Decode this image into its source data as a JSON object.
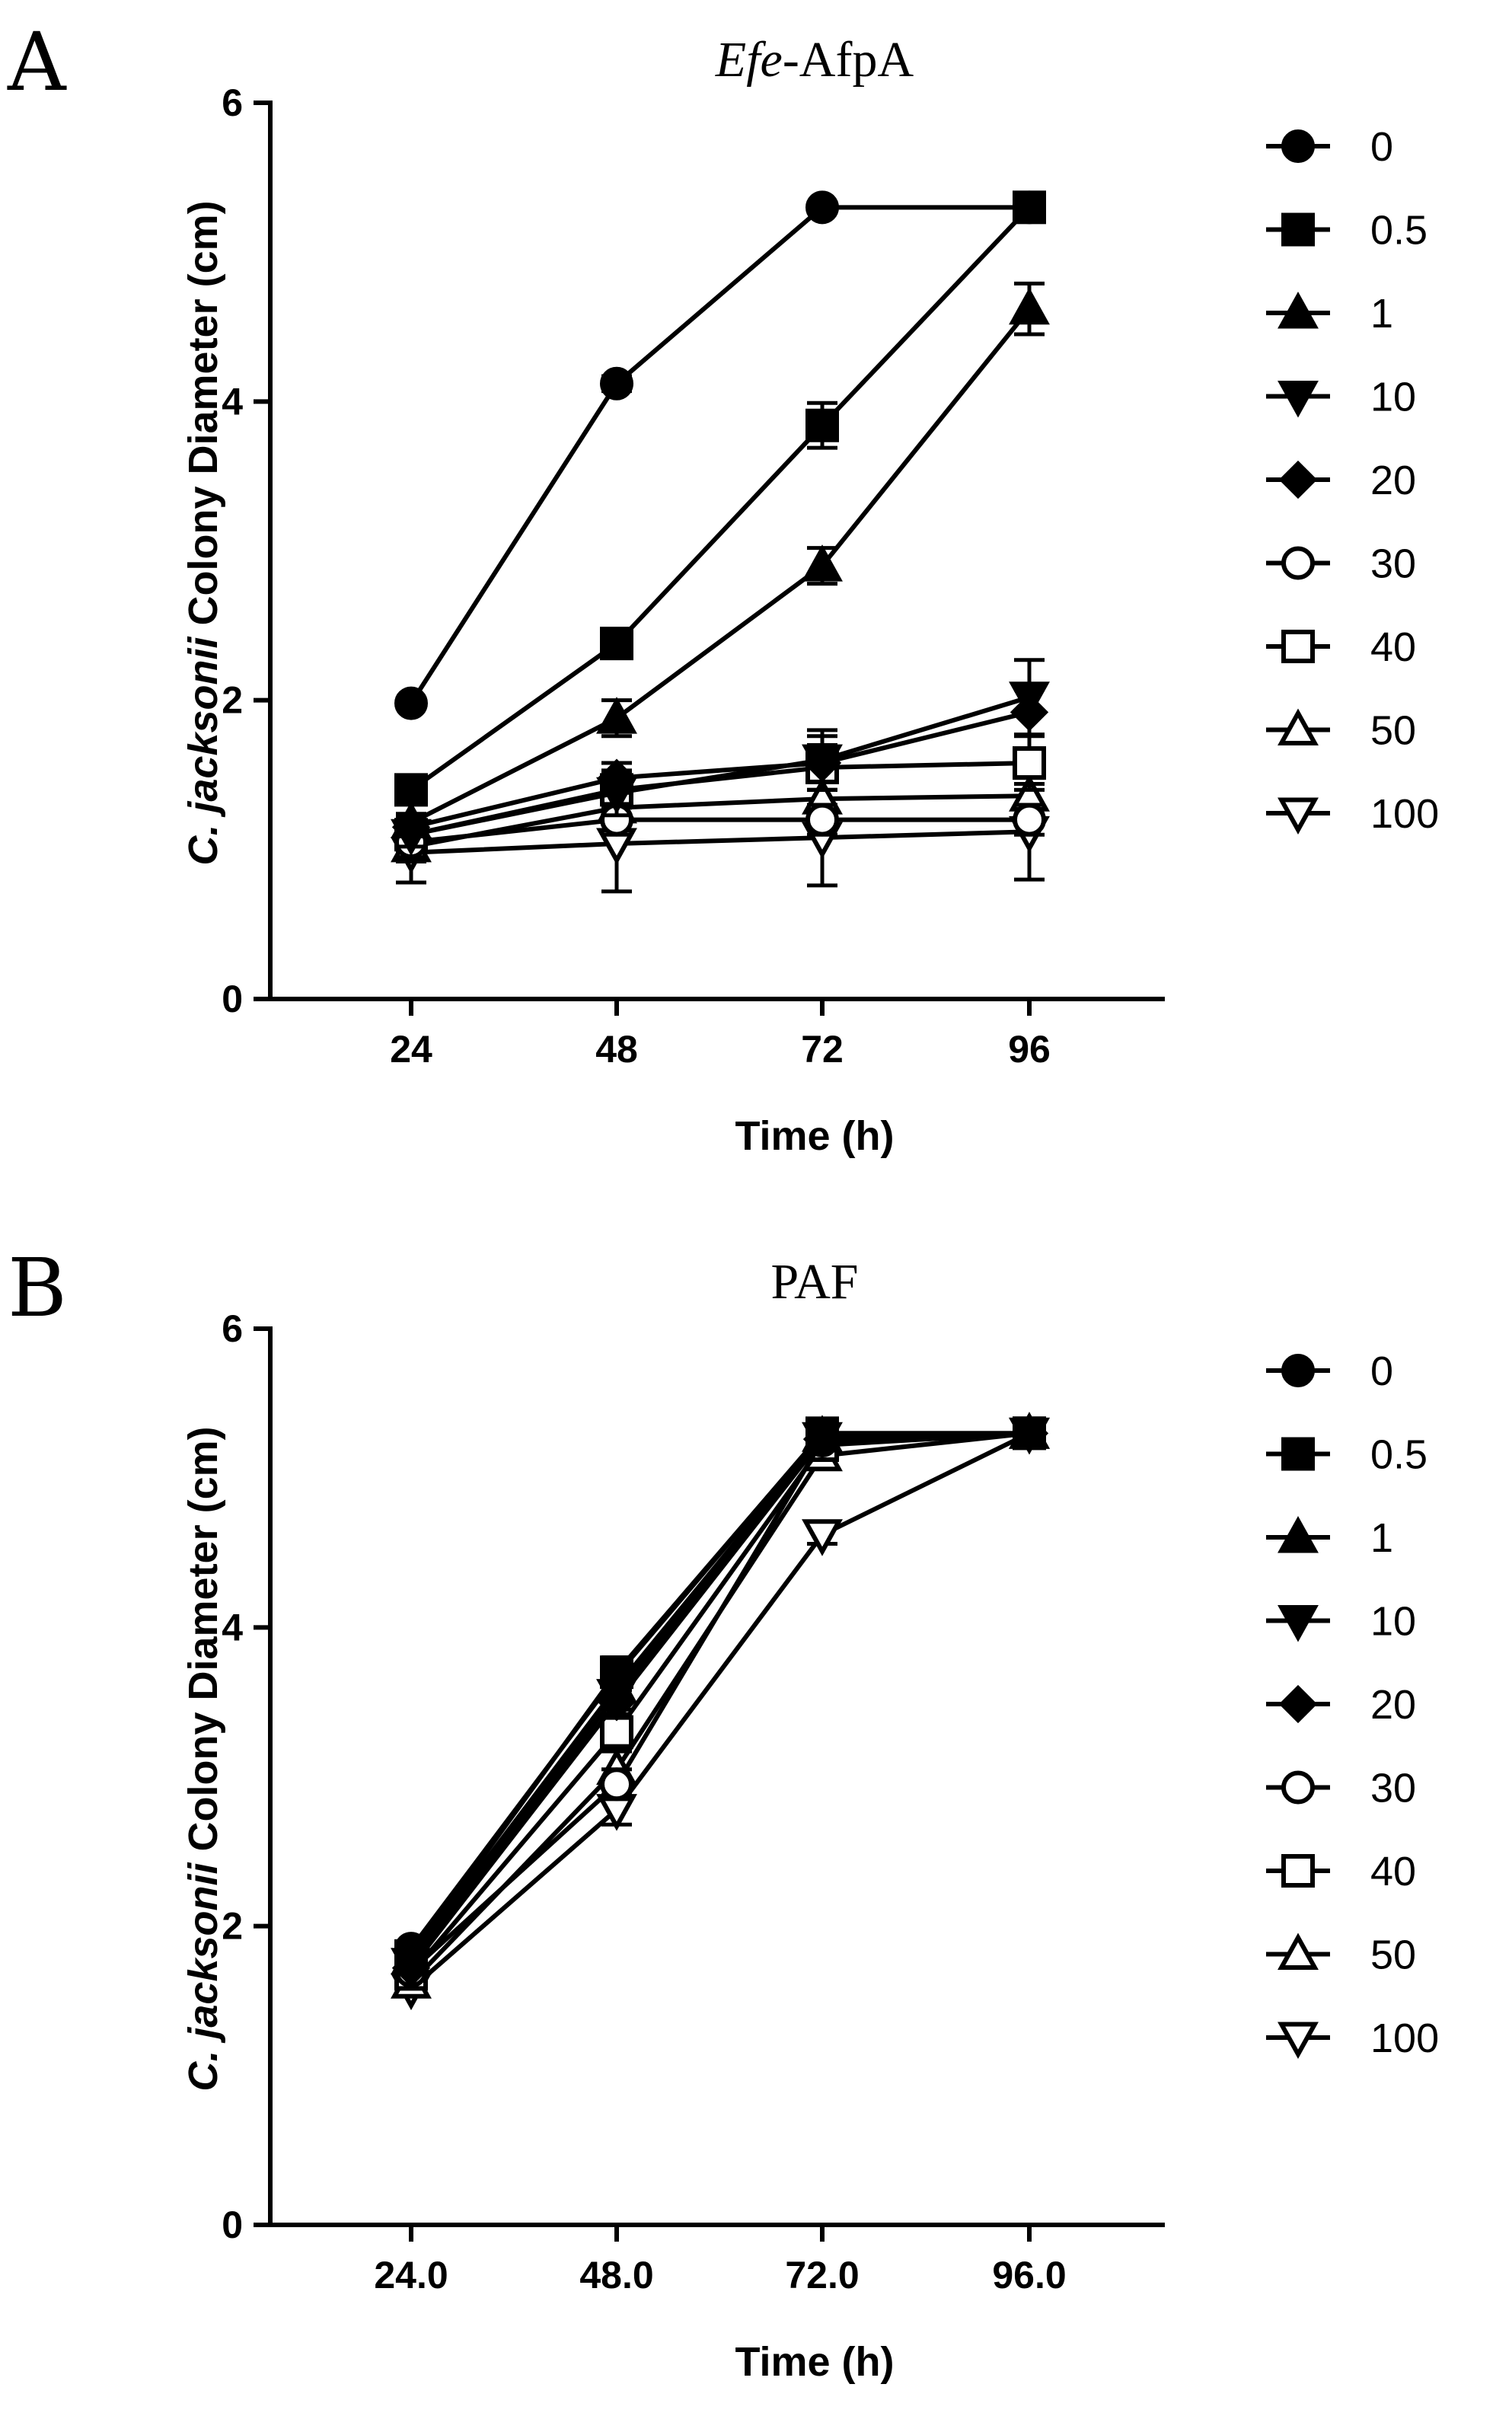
{
  "chart_data": [
    {
      "type": "line",
      "panel": "A",
      "title_italic": "Efe",
      "title_rest": "-AfpA",
      "xlabel": "Time (h)",
      "ylabel_italic": "C. jacksonii",
      "ylabel_rest": " Colony Diameter (cm)",
      "x": [
        24,
        48,
        72,
        96
      ],
      "x_tick_labels": [
        "24",
        "48",
        "72",
        "96"
      ],
      "y_ticks": [
        0,
        2,
        4,
        6
      ],
      "y_tick_labels": [
        "0",
        "2",
        "4",
        "6"
      ],
      "ylim": [
        0,
        6
      ],
      "legend_position": "right",
      "series": [
        {
          "name": "0",
          "marker": "circle",
          "values": [
            1.98,
            4.12,
            5.3,
            5.3
          ],
          "errors": [
            0.03,
            0.05,
            0.03,
            0.03
          ]
        },
        {
          "name": "0.5",
          "marker": "square",
          "values": [
            1.4,
            2.38,
            3.84,
            5.3
          ],
          "errors": [
            0.06,
            0.08,
            0.15,
            0.05
          ]
        },
        {
          "name": "1",
          "marker": "triangle-up",
          "values": [
            1.18,
            1.88,
            2.9,
            4.62
          ],
          "errors": [
            0.06,
            0.12,
            0.12,
            0.17
          ]
        },
        {
          "name": "10",
          "marker": "triangle-down",
          "values": [
            1.1,
            1.38,
            1.6,
            2.02
          ],
          "errors": [
            0.08,
            0.15,
            0.2,
            0.25
          ]
        },
        {
          "name": "20",
          "marker": "diamond",
          "values": [
            1.15,
            1.48,
            1.58,
            1.92
          ],
          "errors": [
            0.06,
            0.1,
            0.18,
            0.15
          ]
        },
        {
          "name": "30",
          "marker": "circle-open",
          "values": [
            1.05,
            1.2,
            1.2,
            1.2
          ],
          "errors": [
            0.1,
            0.1,
            0.1,
            0.1
          ]
        },
        {
          "name": "40",
          "marker": "square-open",
          "values": [
            1.1,
            1.4,
            1.55,
            1.58
          ],
          "errors": [
            0.12,
            0.12,
            0.15,
            0.18
          ]
        },
        {
          "name": "50",
          "marker": "triangle-up-open",
          "values": [
            1.02,
            1.28,
            1.34,
            1.36
          ],
          "errors": [
            0.1,
            0.1,
            0.12,
            0.12
          ]
        },
        {
          "name": "100",
          "marker": "triangle-down-open",
          "values": [
            0.98,
            1.04,
            1.08,
            1.12
          ],
          "errors": [
            0.2,
            0.32,
            0.32,
            0.32
          ]
        }
      ]
    },
    {
      "type": "line",
      "panel": "B",
      "title_italic": "",
      "title_rest": "PAF",
      "xlabel": "Time (h)",
      "ylabel_italic": "C. jacksonii",
      "ylabel_rest": " Colony Diameter (cm)",
      "x": [
        24,
        48,
        72,
        96
      ],
      "x_tick_labels": [
        "24.0",
        "48.0",
        "72.0",
        "96.0"
      ],
      "y_ticks": [
        0,
        2,
        4,
        6
      ],
      "y_tick_labels": [
        "0",
        "2",
        "4",
        "6"
      ],
      "ylim": [
        0,
        6
      ],
      "legend_position": "right",
      "series": [
        {
          "name": "0",
          "marker": "circle",
          "values": [
            1.85,
            3.68,
            5.3,
            5.3
          ],
          "errors": [
            0.04,
            0.1,
            0.04,
            0.03
          ]
        },
        {
          "name": "0.5",
          "marker": "square",
          "values": [
            1.8,
            3.7,
            5.3,
            5.3
          ],
          "errors": [
            0.04,
            0.1,
            0.04,
            0.03
          ]
        },
        {
          "name": "1",
          "marker": "triangle-up",
          "values": [
            1.78,
            3.6,
            5.28,
            5.3
          ],
          "errors": [
            0.04,
            0.1,
            0.04,
            0.03
          ]
        },
        {
          "name": "10",
          "marker": "triangle-down",
          "values": [
            1.75,
            3.55,
            5.27,
            5.3
          ],
          "errors": [
            0.04,
            0.1,
            0.04,
            0.03
          ]
        },
        {
          "name": "20",
          "marker": "diamond",
          "values": [
            1.72,
            3.5,
            5.26,
            5.3
          ],
          "errors": [
            0.04,
            0.1,
            0.04,
            0.03
          ]
        },
        {
          "name": "30",
          "marker": "circle-open",
          "values": [
            1.7,
            2.95,
            5.25,
            5.3
          ],
          "errors": [
            0.04,
            0.1,
            0.04,
            0.03
          ]
        },
        {
          "name": "40",
          "marker": "square-open",
          "values": [
            1.68,
            3.3,
            5.22,
            5.3
          ],
          "errors": [
            0.04,
            0.12,
            0.04,
            0.03
          ]
        },
        {
          "name": "50",
          "marker": "triangle-up-open",
          "values": [
            1.62,
            3.05,
            5.15,
            5.3
          ],
          "errors": [
            0.04,
            0.12,
            0.05,
            0.03
          ]
        },
        {
          "name": "100",
          "marker": "triangle-down-open",
          "values": [
            1.58,
            2.78,
            4.62,
            5.3
          ],
          "errors": [
            0.04,
            0.1,
            0.06,
            0.03
          ]
        }
      ]
    }
  ]
}
